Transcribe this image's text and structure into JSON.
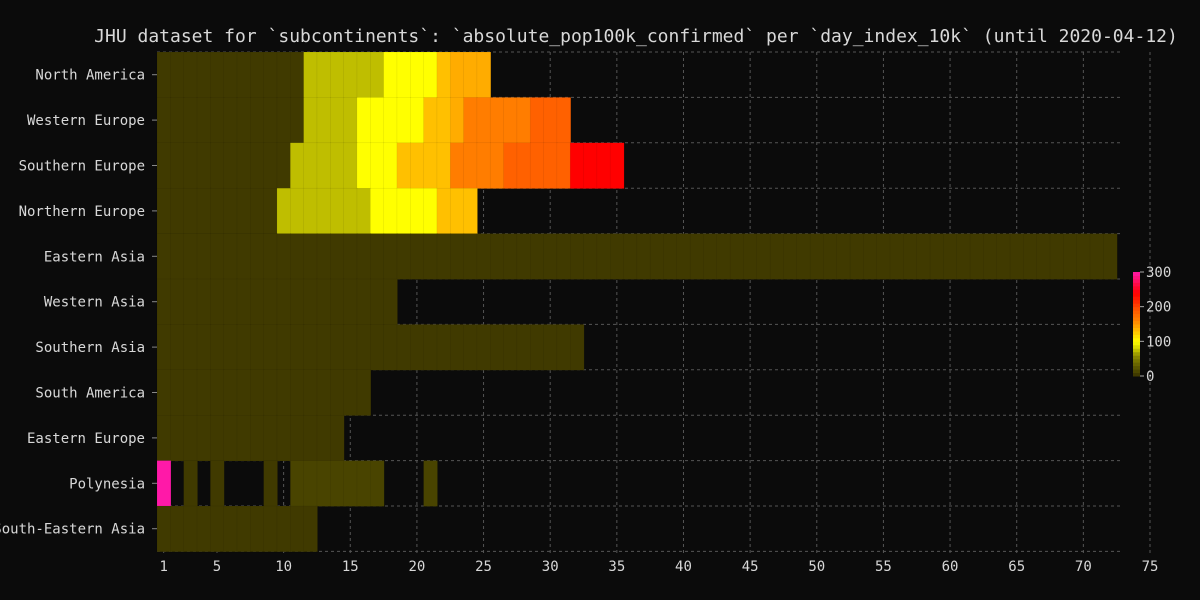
{
  "chart_data": {
    "type": "heatmap",
    "title": "JHU dataset for `subcontinents`: `absolute_pop100k_confirmed` per `day_index_10k` (until 2020-04-12)",
    "x_ticks": [
      1,
      5,
      10,
      15,
      20,
      25,
      30,
      35,
      40,
      45,
      50,
      55,
      60,
      65,
      70,
      75
    ],
    "xlim": [
      0.5,
      75
    ],
    "grid": true,
    "colorbar": {
      "ticks": [
        0,
        100,
        200,
        300
      ],
      "range": [
        0,
        300
      ]
    },
    "colorscale": [
      [
        0,
        "#3a3300"
      ],
      [
        25,
        "#5a5600"
      ],
      [
        60,
        "#8f8c00"
      ],
      [
        80,
        "#cfcf00"
      ],
      [
        100,
        "#ffff00"
      ],
      [
        130,
        "#ffc000"
      ],
      [
        160,
        "#ff8400"
      ],
      [
        190,
        "#ff5a00"
      ],
      [
        220,
        "#ff2000"
      ],
      [
        240,
        "#ff0000"
      ],
      [
        300,
        "#ff19a8"
      ]
    ],
    "rows": [
      {
        "name": "North America",
        "segments": [
          [
            1,
            11,
            5
          ],
          [
            12,
            17,
            75
          ],
          [
            18,
            21,
            100
          ],
          [
            22,
            22,
            130
          ],
          [
            23,
            25,
            140
          ]
        ]
      },
      {
        "name": "Western Europe",
        "segments": [
          [
            1,
            11,
            5
          ],
          [
            12,
            15,
            75
          ],
          [
            16,
            20,
            100
          ],
          [
            21,
            22,
            130
          ],
          [
            23,
            23,
            140
          ],
          [
            24,
            28,
            165
          ],
          [
            29,
            31,
            185
          ]
        ]
      },
      {
        "name": "Southern Europe",
        "segments": [
          [
            1,
            10,
            5
          ],
          [
            11,
            15,
            75
          ],
          [
            16,
            18,
            100
          ],
          [
            19,
            22,
            130
          ],
          [
            23,
            26,
            165
          ],
          [
            27,
            31,
            185
          ],
          [
            32,
            35,
            240
          ]
        ]
      },
      {
        "name": "Northern Europe",
        "segments": [
          [
            1,
            9,
            5
          ],
          [
            10,
            16,
            75
          ],
          [
            17,
            21,
            100
          ],
          [
            22,
            24,
            130
          ]
        ]
      },
      {
        "name": "Eastern Asia",
        "segments": [
          [
            1,
            72,
            5
          ]
        ]
      },
      {
        "name": "Western Asia",
        "segments": [
          [
            1,
            18,
            5
          ]
        ]
      },
      {
        "name": "Southern Asia",
        "segments": [
          [
            1,
            32,
            5
          ]
        ]
      },
      {
        "name": "South America",
        "segments": [
          [
            1,
            16,
            5
          ]
        ]
      },
      {
        "name": "Eastern Europe",
        "segments": [
          [
            1,
            14,
            5
          ]
        ]
      },
      {
        "name": "Polynesia",
        "segments": [
          [
            1,
            1,
            300
          ],
          [
            3,
            3,
            5
          ],
          [
            5,
            5,
            5
          ],
          [
            9,
            9,
            5
          ],
          [
            11,
            17,
            12
          ],
          [
            21,
            21,
            12
          ]
        ]
      },
      {
        "name": "South-Eastern Asia",
        "segments": [
          [
            1,
            12,
            5
          ]
        ]
      }
    ]
  }
}
